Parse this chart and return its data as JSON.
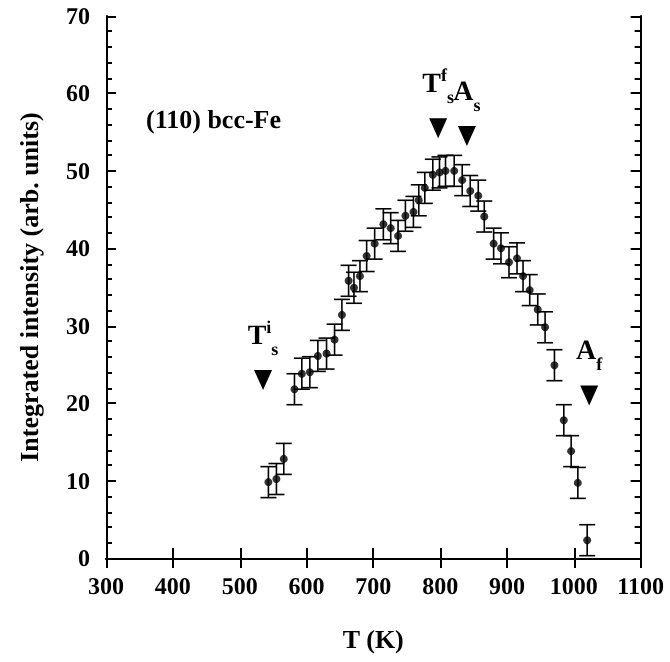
{
  "chart_data": {
    "type": "scatter",
    "xlabel": "T (K)",
    "ylabel": "Integrated intensity (arb. units)",
    "x": [
      543,
      555,
      566,
      582,
      593,
      605,
      617,
      630,
      642,
      653,
      663,
      671,
      680,
      690,
      702,
      715,
      726,
      737,
      748,
      760,
      768,
      777,
      789,
      799,
      808,
      821,
      833,
      845,
      857,
      866,
      880,
      891,
      903,
      915,
      924,
      934,
      946,
      957,
      971,
      985,
      996,
      1006,
      1020
    ],
    "values": [
      9.8,
      10.2,
      12.8,
      21.8,
      23.8,
      24.0,
      26.1,
      26.4,
      28.2,
      31.4,
      35.8,
      34.9,
      36.4,
      39.0,
      40.6,
      43.1,
      42.6,
      41.6,
      44.2,
      44.7,
      46.2,
      47.8,
      49.5,
      49.8,
      50.0,
      50.0,
      48.8,
      47.4,
      46.8,
      44.1,
      40.6,
      40.0,
      38.2,
      38.7,
      36.4,
      34.6,
      32.1,
      29.8,
      24.9,
      17.8,
      13.8,
      9.7,
      2.3
    ],
    "errors": [
      2,
      2,
      2,
      2,
      2,
      2,
      2,
      2,
      2,
      2,
      2,
      2,
      2,
      2,
      2,
      2,
      2,
      2,
      2,
      2,
      2,
      2,
      2,
      2,
      2,
      2,
      2,
      2,
      2,
      2,
      2,
      2,
      2,
      2,
      2,
      2,
      2,
      2,
      2,
      2,
      2,
      2,
      2
    ],
    "color": "#000000",
    "marker": "circle",
    "xlim": [
      300,
      1100
    ],
    "xticks": [
      300,
      400,
      500,
      600,
      700,
      800,
      900,
      1000,
      1100
    ],
    "ylim": [
      0,
      70
    ],
    "yticks": [
      0,
      10,
      20,
      30,
      40,
      50,
      60,
      70
    ],
    "grid": false,
    "annotations": [
      "(110) bcc-Fe",
      {
        "text": "T$^{i}$$_{s}$",
        "x": 535,
        "y": 23
      },
      {
        "text": "T$^{f}$$_{s}$",
        "x": 797,
        "y": 55.5
      },
      {
        "text": "A$_{s}$",
        "x": 840,
        "y": 54.5
      },
      {
        "text": "A$_{f}$",
        "x": 1023,
        "y": 21
      }
    ]
  }
}
